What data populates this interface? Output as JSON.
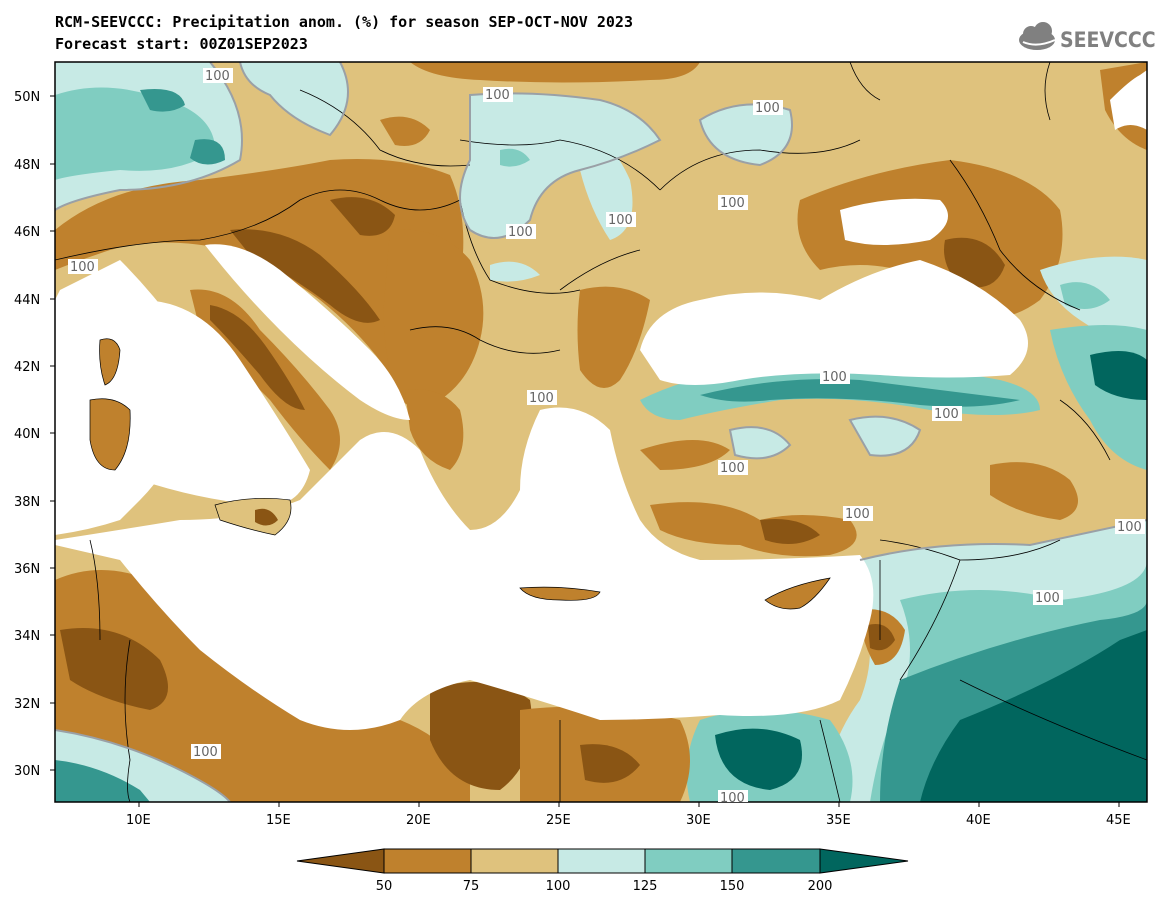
{
  "header": {
    "title": "RCM-SEEVCCC: Precipitation anom. (%) for season SEP-OCT-NOV 2023",
    "subtitle": "Forecast start: 00Z01SEP2023",
    "logo_text": "SEEVCCC"
  },
  "map": {
    "lat_labels": [
      "50N",
      "48N",
      "46N",
      "44N",
      "42N",
      "40N",
      "38N",
      "36N",
      "34N",
      "32N",
      "30N"
    ],
    "lon_labels": [
      "10E",
      "15E",
      "20E",
      "25E",
      "30E",
      "35E",
      "40E",
      "45E"
    ],
    "contour_label": "100",
    "colors": {
      "lt50": "#8a5514",
      "b50_75": "#bf812d",
      "b75_100": "#dfc27d",
      "b100_125": "#c7eae5",
      "b125_150": "#80cdc1",
      "b150_200": "#35978f",
      "gt200": "#01665e",
      "sea": "#ffffff"
    }
  },
  "colorbar": {
    "ticks": [
      "50",
      "75",
      "100",
      "125",
      "150",
      "200"
    ]
  }
}
